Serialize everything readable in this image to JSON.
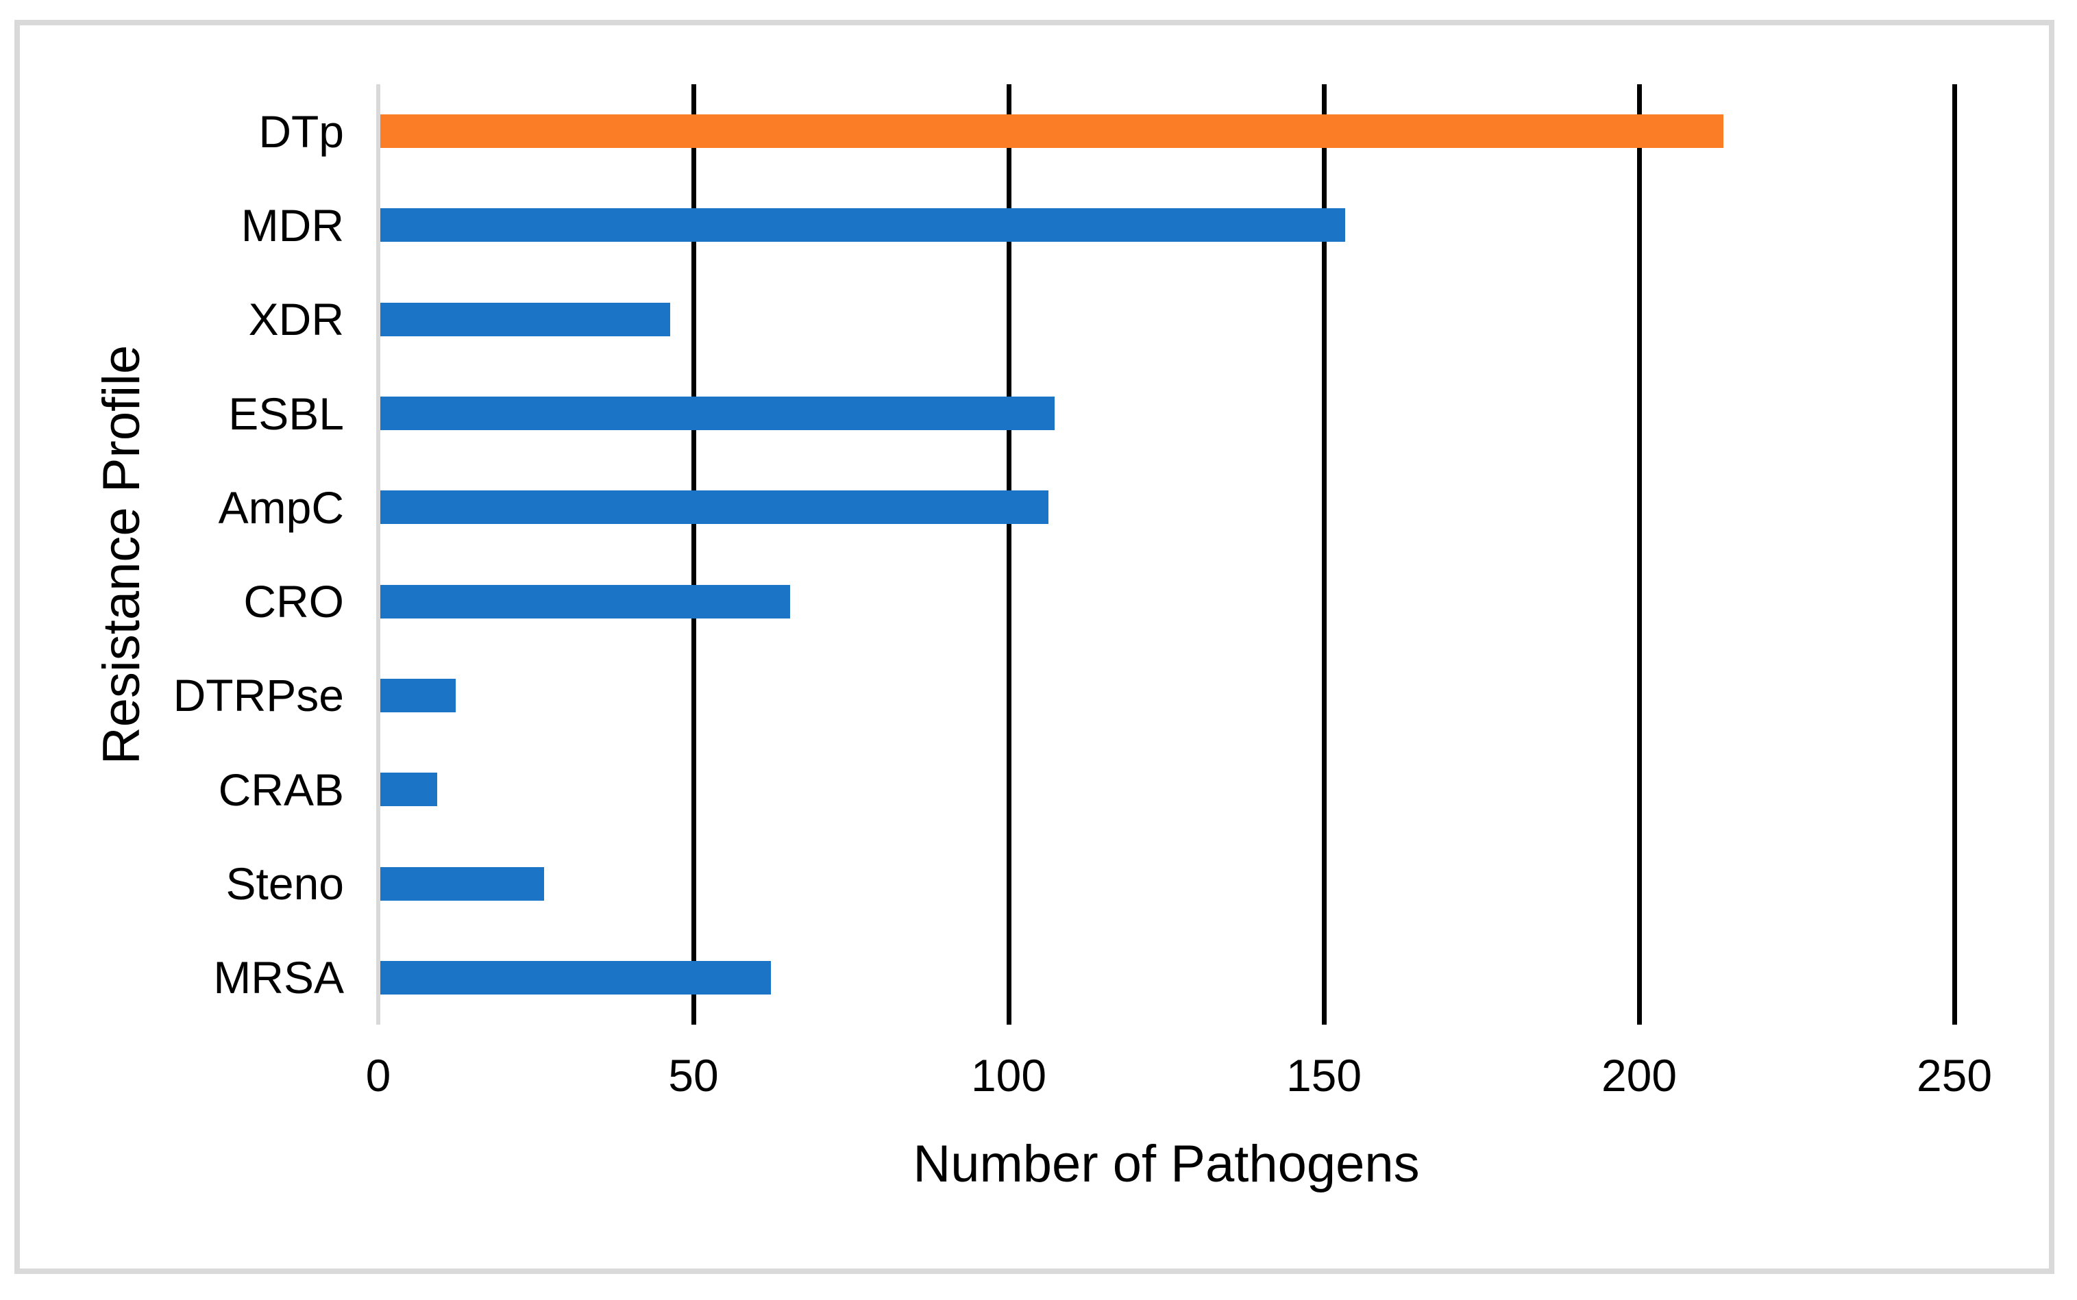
{
  "chart_data": {
    "type": "bar",
    "orientation": "horizontal",
    "title": "",
    "xlabel": "Number of Pathogens",
    "ylabel": "Resistance Profile",
    "categories": [
      "DTp",
      "MDR",
      "XDR",
      "ESBL",
      "AmpC",
      "CRO",
      "DTRPse",
      "CRAB",
      "Steno",
      "MRSA"
    ],
    "values": [
      213,
      153,
      46,
      107,
      106,
      65,
      12,
      9,
      26,
      62
    ],
    "xlim": [
      0,
      250
    ],
    "xticks": [
      0,
      50,
      100,
      150,
      200,
      250
    ],
    "grid": true,
    "legend": false,
    "highlight_category": "DTp"
  },
  "palette": {
    "bar_default": "#1B74C5",
    "bar_highlight": "#FB7D26",
    "gridline": "#000000",
    "axis_line": "#D9D9D9",
    "frame_border": "#D9D9D9",
    "background": "#FFFFFF",
    "text": "#000000"
  }
}
